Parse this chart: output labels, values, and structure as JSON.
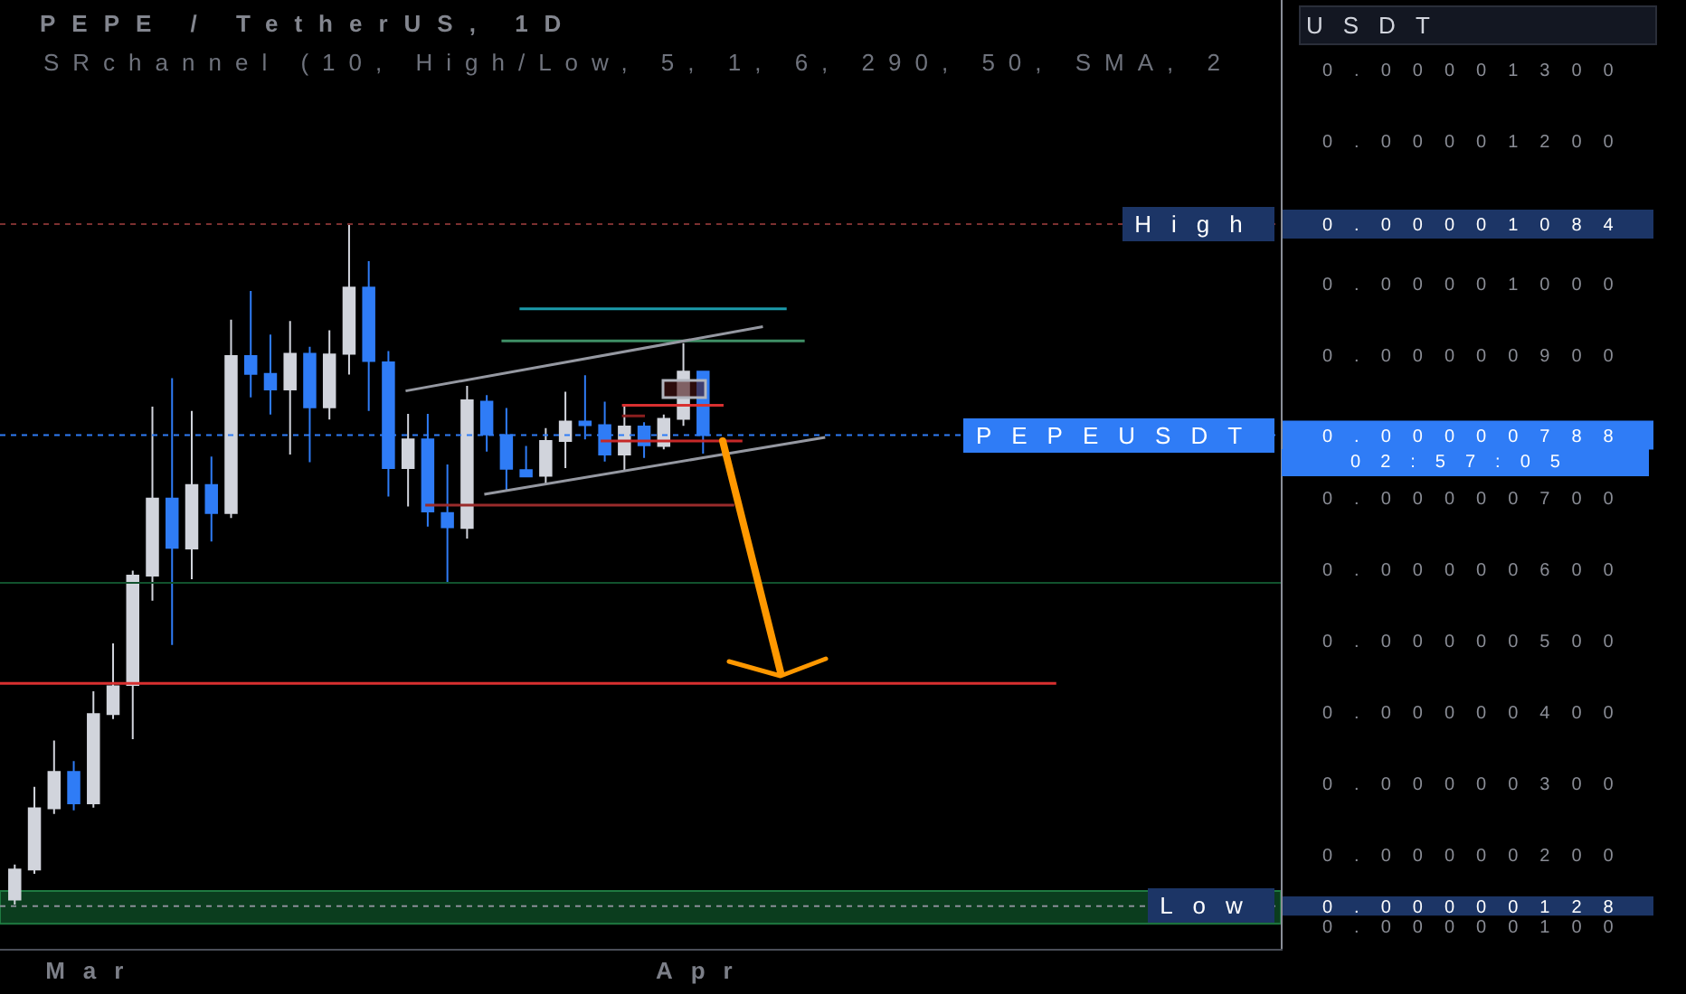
{
  "chart_data": {
    "type": "candlestick",
    "title": "PEPE / TetherUS, 1D",
    "subtitle": "SRchannel (10, High/Low, 5, 1, 6, 290, 50, SMA, 2",
    "ylabel": "USDT",
    "x": [
      "--02-26",
      "--02-27",
      "--02-28",
      "--02-29",
      "--03-01",
      "--03-02",
      "--03-03",
      "--03-04",
      "--03-05",
      "--03-06",
      "--03-07",
      "--03-08",
      "--03-09",
      "--03-10",
      "--03-11",
      "--03-12",
      "--03-13",
      "--03-14",
      "--03-15",
      "--03-16",
      "--03-17",
      "--03-18",
      "--03-19",
      "--03-20",
      "--03-21",
      "--03-22",
      "--03-23",
      "--03-24",
      "--03-25",
      "--03-26",
      "--03-27",
      "--03-28",
      "--03-29",
      "--03-30",
      "--03-31",
      "--04-01"
    ],
    "ohlc": [
      [
        1.37e-06,
        1.86e-06,
        1.3e-06,
        1.79e-06
      ],
      [
        1.79e-06,
        2.95e-06,
        1.73e-06,
        2.65e-06
      ],
      [
        2.65e-06,
        3.6e-06,
        2.57e-06,
        3.16e-06
      ],
      [
        3.16e-06,
        3.31e-06,
        2.62e-06,
        2.72e-06
      ],
      [
        2.72e-06,
        4.29e-06,
        2.66e-06,
        3.97e-06
      ],
      [
        3.97e-06,
        4.96e-06,
        3.9e-06,
        4.36e-06
      ],
      [
        4.38e-06,
        5.98e-06,
        3.62e-06,
        5.91e-06
      ],
      [
        5.91e-06,
        8.28e-06,
        5.56e-06,
        6.99e-06
      ],
      [
        6.99e-06,
        8.68e-06,
        4.94e-06,
        6.3e-06
      ],
      [
        6.29e-06,
        8.22e-06,
        5.86e-06,
        7.18e-06
      ],
      [
        7.18e-06,
        7.58e-06,
        6.39e-06,
        6.79e-06
      ],
      [
        6.79e-06,
        9.5e-06,
        6.72e-06,
        8.99e-06
      ],
      [
        8.99e-06,
        9.9e-06,
        8.41e-06,
        8.74e-06
      ],
      [
        8.74e-06,
        9.29e-06,
        8.17e-06,
        8.52e-06
      ],
      [
        8.52e-06,
        9.48e-06,
        7.61e-06,
        9.02e-06
      ],
      [
        9.02e-06,
        9.12e-06,
        7.5e-06,
        8.27e-06
      ],
      [
        8.27e-06,
        9.35e-06,
        8.1e-06,
        9.01e-06
      ],
      [
        9.02e-06,
        1.084e-05,
        8.73e-06,
        9.95e-06
      ],
      [
        9.95e-06,
        1.032e-05,
        8.22e-06,
        8.92e-06
      ],
      [
        8.9e-06,
        9.06e-06,
        7.02e-06,
        7.42e-06
      ],
      [
        7.42e-06,
        8.18e-06,
        6.88e-06,
        7.82e-06
      ],
      [
        7.82e-06,
        8.18e-06,
        6.6e-06,
        6.81e-06
      ],
      [
        6.79e-06,
        7.47e-06,
        5.82e-06,
        6.59e-06
      ],
      [
        6.58e-06,
        8.57e-06,
        6.43e-06,
        8.37e-06
      ],
      [
        8.35e-06,
        8.44e-06,
        7.65e-06,
        7.89e-06
      ],
      [
        7.88e-06,
        8.26e-06,
        7.09e-06,
        7.41e-06
      ],
      [
        7.39e-06,
        7.73e-06,
        7.3e-06,
        7.3e-06
      ],
      [
        7.31e-06,
        7.98e-06,
        7.19e-06,
        7.8e-06
      ],
      [
        7.8e-06,
        8.49e-06,
        7.42e-06,
        8.07e-06
      ],
      [
        8.07e-06,
        8.72e-06,
        7.82e-06,
        8.02e-06
      ],
      [
        8.02e-06,
        8.35e-06,
        7.51e-06,
        7.61e-06
      ],
      [
        7.61e-06,
        8.3e-06,
        7.38e-06,
        8e-06
      ],
      [
        8e-06,
        8.06e-06,
        7.56e-06,
        7.74e-06
      ],
      [
        7.73e-06,
        8.17e-06,
        7.68e-06,
        8.11e-06
      ],
      [
        8.11e-06,
        9.17e-06,
        8.01e-06,
        8.77e-06
      ],
      [
        8.77e-06,
        8.77e-06,
        7.62e-06,
        7.88e-06
      ]
    ],
    "colors": [
      "#d1d4dc",
      "#d1d4dc",
      "#d1d4dc",
      "#2f7cf6",
      "#d1d4dc",
      "#d1d4dc",
      "#d1d4dc",
      "#d1d4dc",
      "#2f7cf6",
      "#d1d4dc",
      "#2f7cf6",
      "#d1d4dc",
      "#2f7cf6",
      "#2f7cf6",
      "#d1d4dc",
      "#2f7cf6",
      "#d1d4dc",
      "#d1d4dc",
      "#2f7cf6",
      "#2f7cf6",
      "#d1d4dc",
      "#2f7cf6",
      "#2f7cf6",
      "#d1d4dc",
      "#2f7cf6",
      "#2f7cf6",
      "#2f7cf6",
      "#d1d4dc",
      "#d1d4dc",
      "#2f7cf6",
      "#2f7cf6",
      "#d1d4dc",
      "#2f7cf6",
      "#d1d4dc",
      "#d1d4dc",
      "#2f7cf6"
    ],
    "series": [
      {
        "type": "line",
        "color": "#d93030",
        "x": [
          "--02-25T06:00",
          "--04-18T23:00"
        ],
        "values": [
          4.4e-06,
          4.4e-06
        ]
      },
      {
        "type": "line",
        "color": "#1b9aaa",
        "x": [
          "--03-22T16:00",
          "--04-05T06:00"
        ],
        "values": [
          9.65e-06,
          9.65e-06
        ]
      },
      {
        "type": "line",
        "color": "#3f8f66",
        "x": [
          "--03-21T18:00",
          "--04-06T04:00"
        ],
        "values": [
          9.2e-06,
          9.2e-06
        ]
      },
      {
        "type": "line",
        "color": "#9a2b2b",
        "x": [
          "--03-17T21:00",
          "--04-02T14:00"
        ],
        "values": [
          6.9e-06,
          6.9e-06
        ]
      },
      {
        "type": "line",
        "color": "#d93030",
        "x": [
          "--03-27T21:00",
          "--04-02T01:00"
        ],
        "values": [
          8.3e-06,
          8.3e-06
        ]
      },
      {
        "type": "line",
        "color": "#c62828",
        "x": [
          "--03-26T19:00",
          "--04-03T00:00"
        ],
        "values": [
          7.8e-06,
          7.8e-06
        ]
      },
      {
        "type": "line",
        "color": "#8b1f1f",
        "x": [
          "--03-27T21:00",
          "--03-29T01:00"
        ],
        "values": [
          8.15e-06,
          8.15e-06
        ]
      },
      {
        "type": "line",
        "color": "#9598a1",
        "x": [
          "--03-16T21:00",
          "--04-04T01:00"
        ],
        "values": [
          8.5e-06,
          9.4e-06
        ]
      },
      {
        "type": "line",
        "color": "#9598a1",
        "x": [
          "--03-20T21:00",
          "--04-07T05:00"
        ],
        "values": [
          7.05e-06,
          7.85e-06
        ]
      }
    ],
    "xlim": [
      "--02-25T06:00",
      "--04-30T09:00"
    ],
    "xticks": [
      {
        "value": "--03-01",
        "label": "Mar"
      },
      {
        "value": "--04-01",
        "label": "Apr"
      }
    ],
    "ylim": [
      6.8e-07,
      1.398e-05
    ],
    "yticks": [
      {
        "value": 1.3e-05,
        "label": "0.00001300"
      },
      {
        "value": 1.2e-05,
        "label": "0.00001200"
      },
      {
        "value": 1.084e-05,
        "label": "0.00001084"
      },
      {
        "value": 1e-05,
        "label": "0.00001000"
      },
      {
        "value": 9e-06,
        "label": "0.00000900"
      },
      {
        "value": 7.88e-06,
        "label": "0.00000788"
      },
      {
        "value": 7e-06,
        "label": "0.00000700"
      },
      {
        "value": 6e-06,
        "label": "0.00000600"
      },
      {
        "value": 5e-06,
        "label": "0.00000500"
      },
      {
        "value": 4e-06,
        "label": "0.00000400"
      },
      {
        "value": 3e-06,
        "label": "0.00000300"
      },
      {
        "value": 2e-06,
        "label": "0.00000200"
      },
      {
        "value": 1.28e-06,
        "label": "0.00000128"
      },
      {
        "value": 1e-06,
        "label": "0.00000100"
      }
    ],
    "ref_lines": [
      {
        "axis": "y",
        "value": 1.084e-05,
        "label": "High",
        "color": "#7b3030",
        "line_style": "dotted"
      },
      {
        "axis": "y",
        "value": 7.88e-06,
        "label": "PEPEUSDT",
        "color": "#2f7cf6",
        "line_style": "dotted"
      },
      {
        "axis": "y",
        "value": 5.81e-06,
        "color": "#11522d"
      },
      {
        "axis": "y",
        "value": 1.28e-06,
        "label": "Low",
        "color": "#8a8e98",
        "line_style": "dotted"
      }
    ],
    "bands": [
      {
        "axis": "y",
        "from": 1.03e-06,
        "to": 1.49e-06,
        "color": "#0b3d1e"
      }
    ],
    "annotations": [
      "02:57:05"
    ]
  }
}
